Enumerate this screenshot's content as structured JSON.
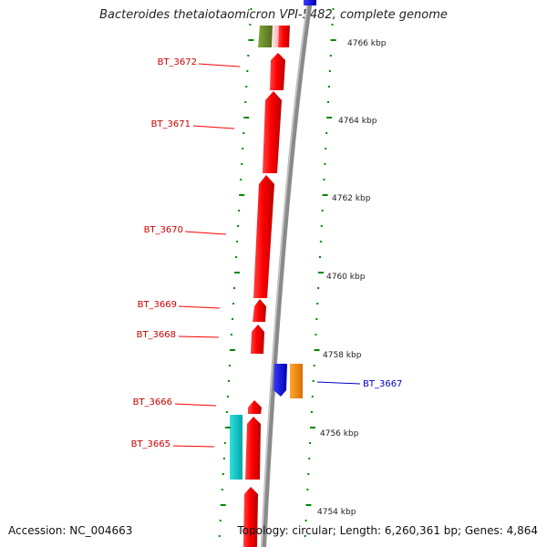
{
  "title": "Bacteroides thetaiotaomicron VPI-5482, complete genome",
  "accession": "Accession: NC_004663",
  "topology": "Topology: circular; Length: 6,260,361 bp; Genes: 4,864",
  "colors": {
    "forward_gene": "#ff0000",
    "reverse_gene_blue": "#0000ff",
    "reverse_gene_orange": "#ff8c00",
    "cyan_gene": "#00cccc",
    "olive_gene": "#6b8e23",
    "tick": "#008800",
    "backbone": "#888888"
  },
  "scale_labels": [
    "4766 kbp",
    "4764 kbp",
    "4762 kbp",
    "4760 kbp",
    "4758 kbp",
    "4756 kbp",
    "4754 kbp"
  ],
  "gene_labels": [
    "BT_3672",
    "BT_3671",
    "BT_3670",
    "BT_3669",
    "BT_3668",
    "BT_3667",
    "BT_3666",
    "BT_3665"
  ]
}
